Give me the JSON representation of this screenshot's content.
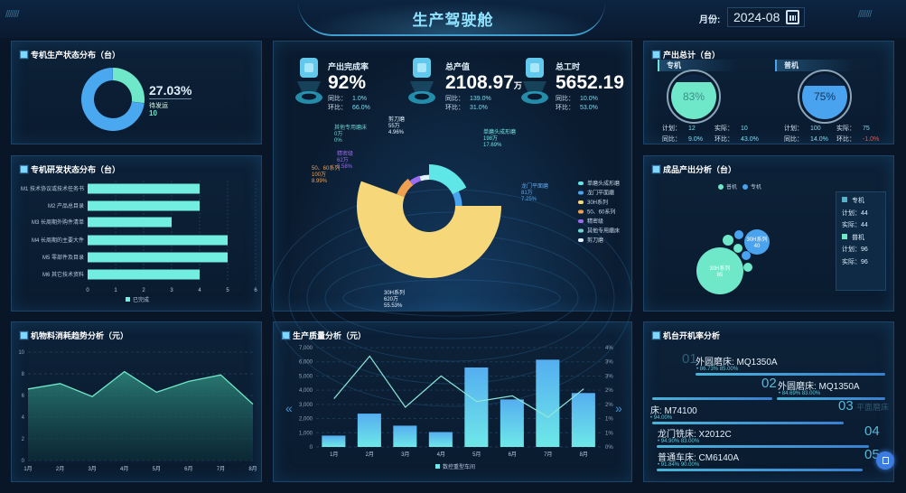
{
  "header": {
    "title": "生产驾驶舱",
    "month_label": "月份:",
    "month_value": "2024-08",
    "slashes": "///////"
  },
  "status_panel": {
    "title": "专机生产状态分布（台）",
    "percent": "27.03%",
    "label": "待发运",
    "count": "10"
  },
  "rd_panel": {
    "title": "专机研发状态分布（台）"
  },
  "kpis": [
    {
      "title": "产出完成率",
      "value": "92%",
      "unit": "",
      "yoy_label": "同比：",
      "yoy": "1.0%",
      "mom_label": "环比：",
      "mom": "66.0%",
      "icon": "checklist-icon"
    },
    {
      "title": "总产值",
      "value": "2108.97",
      "unit": "万",
      "yoy_label": "同比：",
      "yoy": "139.0%",
      "mom_label": "环比：",
      "mom": "31.0%",
      "icon": "yen-icon"
    },
    {
      "title": "总工时",
      "value": "5652.19",
      "unit": "",
      "yoy_label": "同比：",
      "yoy": "10.0%",
      "mom_label": "环比：",
      "mom": "53.0%",
      "icon": "clock-icon"
    }
  ],
  "output_total": {
    "title": "产出总计（台）",
    "special": {
      "tag": "专机",
      "level": 83,
      "percent": "83%",
      "plan_label": "计划：",
      "plan": "12",
      "actual_label": "实际：",
      "actual": "10",
      "yoy_label": "同比：",
      "yoy": "9.0%",
      "mom_label": "环比：",
      "mom": "43.0%",
      "color": "#6ee8c8"
    },
    "general": {
      "tag": "普机",
      "level": 75,
      "percent": "75%",
      "plan_label": "计划：",
      "plan": "100",
      "actual_label": "实际：",
      "actual": "75",
      "yoy_label": "同比：",
      "yoy": "14.0%",
      "mom_label": "环比：",
      "mom": "-1.0%",
      "color": "#4aa3ee"
    }
  },
  "product_panel": {
    "title": "成品产出分析（台）",
    "info": {
      "special": "专机",
      "general": "普机",
      "plan_label": "计划：",
      "actual_label": "实际：",
      "special_plan": "44",
      "special_actual": "44",
      "general_plan": "96",
      "general_actual": "96"
    }
  },
  "material_panel": {
    "title": "机物料消耗趋势分析（元）"
  },
  "quality_panel": {
    "title": "生产质量分析（元）",
    "prev": "«",
    "next": "»"
  },
  "machine_panel": {
    "title": "机台开机率分析",
    "items": [
      {
        "rank": "01",
        "name": "外圆磨床: MQ1350A",
        "rate": "86.73%",
        "target": "85.00%"
      },
      {
        "rank": "02",
        "name": "外圆磨床: MQ1350A",
        "rate": "84.69%",
        "target": "83.00%"
      },
      {
        "rank": "03",
        "name": "床: M74100",
        "rate": "94.00%",
        "target": "",
        "ghost": "平面磨床"
      },
      {
        "rank": "04",
        "name": "龙门铣床: X2012C",
        "rate": "94.90%",
        "target": "83.00%"
      },
      {
        "rank": "05",
        "name": "普通车床: CM6140A",
        "rate": "91.84%",
        "target": "90.00%"
      }
    ]
  },
  "colors": {
    "accent": "#6ee8c8",
    "blue": "#4aa3ee",
    "bg": "#081628",
    "negative": "#e05a4a"
  },
  "chart_data": [
    {
      "id": "status",
      "type": "pie",
      "donut": true,
      "slices": [
        {
          "name": "待发运",
          "value": 27.03,
          "color": "#6ee8c8"
        },
        {
          "value": 72.97,
          "color": "#4aa8f0"
        }
      ]
    },
    {
      "id": "rd",
      "type": "bar",
      "orientation": "horizontal",
      "categories": [
        "M1 技术协议或技术任务书",
        "M2 产品总目录",
        "M3 长周期外购件清单",
        "M4 长周期的主要大件",
        "M5 零部件及目录",
        "M6 其它技术资料"
      ],
      "series": [
        {
          "name": "已完成",
          "values": [
            4,
            4,
            3,
            5,
            5,
            4
          ],
          "color": "#72eee0"
        }
      ],
      "xlim": [
        0,
        6
      ],
      "xticks": [
        "0",
        "1",
        "2",
        "3",
        "4",
        "5",
        "6"
      ],
      "legend": "bottom"
    },
    {
      "id": "product",
      "type": "pie",
      "donut": true,
      "rose": true,
      "legend": "right",
      "slices": [
        {
          "name": "单磨头成形磨",
          "value": 198,
          "label": "198万",
          "percent": "17.69%",
          "color": "#5fe6e6"
        },
        {
          "name": "龙门平面磨",
          "value": 81,
          "label": "81万",
          "percent": "7.25%",
          "color": "#4aa3ee"
        },
        {
          "name": "30H系列",
          "value": 620,
          "label": "620万",
          "percent": "55.53%",
          "color": "#f6d87a"
        },
        {
          "name": "50、60系列",
          "value": 100,
          "label": "100万",
          "percent": "8.99%",
          "color": "#f0a050"
        },
        {
          "name": "精密级",
          "value": 62,
          "label": "62万",
          "percent": "5.58%",
          "color": "#9b6cf0"
        },
        {
          "name": "其他专用磨床",
          "value": 0,
          "label": "0万",
          "percent": "0%",
          "color": "#6fd3d0"
        },
        {
          "name": "剪刀磨",
          "value": 55,
          "label": "55万",
          "percent": "4.96%",
          "color": "#dff3ff"
        }
      ]
    },
    {
      "id": "bubble",
      "type": "scatter",
      "bubble": true,
      "legend": "top",
      "series": [
        {
          "name": "普机",
          "color": "#6ee8c8"
        },
        {
          "name": "专机",
          "color": "#4aa3ee"
        }
      ],
      "labeled": [
        {
          "series": "普机",
          "name": "30H系列",
          "value": 85
        },
        {
          "series": "专机",
          "name": "30H系列",
          "value": 40
        }
      ]
    },
    {
      "id": "material",
      "type": "area",
      "categories": [
        "1月",
        "2月",
        "3月",
        "4月",
        "5月",
        "6月",
        "7月",
        "8月"
      ],
      "values": [
        6.6,
        7.1,
        5.9,
        8.2,
        6.3,
        7.3,
        7.9,
        5.2
      ],
      "ylim": [
        0,
        10
      ],
      "yticks": [
        "0",
        "2",
        "4",
        "6",
        "8",
        "10"
      ],
      "grid": true,
      "color": "#6ee8c8"
    },
    {
      "id": "quality",
      "type": "bar",
      "categories": [
        "1月",
        "2月",
        "3月",
        "4月",
        "5月",
        "6月",
        "7月",
        "8月"
      ],
      "series": [
        {
          "name": "数控重型车间",
          "type": "bar",
          "values": [
            800,
            2350,
            1500,
            1050,
            5600,
            3350,
            6150,
            3800
          ],
          "color": "#5ab8f0"
        },
        {
          "type": "line",
          "axis": "right",
          "values": [
            1.7,
            3.2,
            1.4,
            2.5,
            1.6,
            1.8,
            1.05,
            2.05
          ],
          "color": "#8ee8d8"
        }
      ],
      "ylim": [
        0,
        7000
      ],
      "yticks": [
        "0",
        "1,000",
        "2,000",
        "3,000",
        "4,000",
        "5,000",
        "6,000",
        "7,000"
      ],
      "y2lim": [
        0,
        3.5
      ],
      "y2ticks": [
        "0%",
        "1%",
        "1%",
        "2%",
        "2%",
        "3%",
        "3%",
        "4%"
      ],
      "grid": true,
      "legend": "bottom"
    }
  ]
}
